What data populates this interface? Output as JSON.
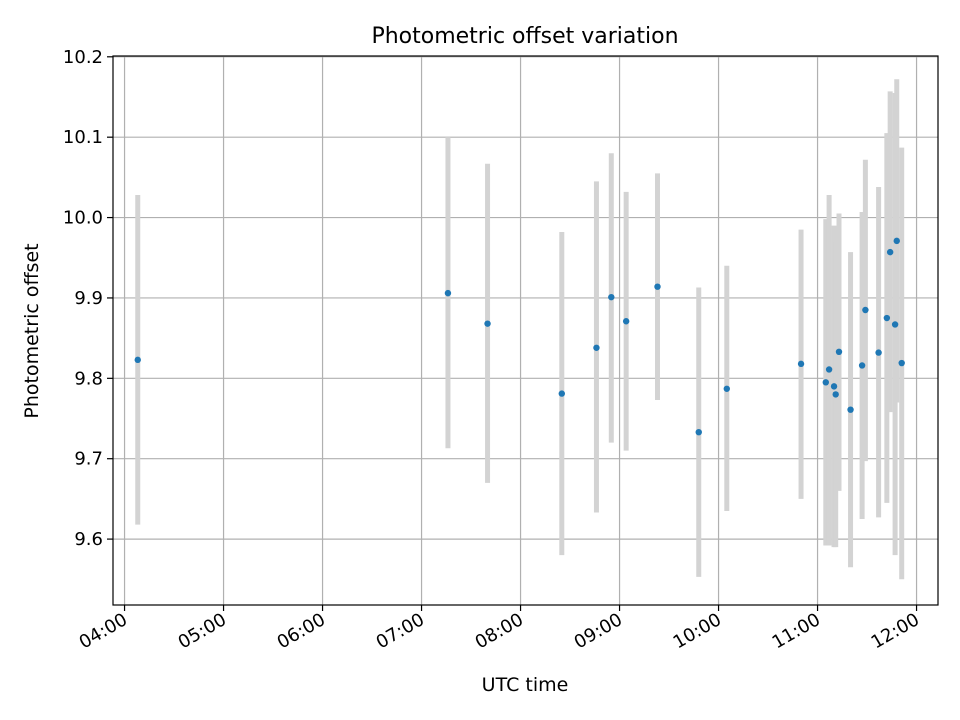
{
  "chart_data": {
    "type": "scatter",
    "title": "Photometric offset variation",
    "xlabel": "UTC time",
    "ylabel": "Photometric offset",
    "xlim": [
      "03:53",
      "12:13"
    ],
    "ylim": [
      9.518,
      10.201
    ],
    "x_ticks": [
      "04:00",
      "05:00",
      "06:00",
      "07:00",
      "08:00",
      "09:00",
      "10:00",
      "11:00",
      "12:00"
    ],
    "y_ticks": [
      "9.6",
      "9.7",
      "9.8",
      "9.9",
      "10.0",
      "10.1",
      "10.2"
    ],
    "grid": true,
    "legend": "none",
    "colors": {
      "points": "#1f77b4",
      "error_bars": "#d3d3d3",
      "grid": "#b0b0b0"
    },
    "series": [
      {
        "points": [
          {
            "x": "04:08",
            "y": 9.823,
            "err_low": 9.618,
            "err_high": 10.028
          },
          {
            "x": "07:16",
            "y": 9.906,
            "err_low": 9.713,
            "err_high": 10.1
          },
          {
            "x": "07:40",
            "y": 9.868,
            "err_low": 9.67,
            "err_high": 10.067
          },
          {
            "x": "08:25",
            "y": 9.781,
            "err_low": 9.58,
            "err_high": 9.982
          },
          {
            "x": "08:46",
            "y": 9.838,
            "err_low": 9.633,
            "err_high": 10.045
          },
          {
            "x": "08:55",
            "y": 9.901,
            "err_low": 9.72,
            "err_high": 10.08
          },
          {
            "x": "09:04",
            "y": 9.871,
            "err_low": 9.71,
            "err_high": 10.032
          },
          {
            "x": "09:23",
            "y": 9.914,
            "err_low": 9.773,
            "err_high": 10.055
          },
          {
            "x": "09:48",
            "y": 9.733,
            "err_low": 9.553,
            "err_high": 9.913
          },
          {
            "x": "10:05",
            "y": 9.787,
            "err_low": 9.635,
            "err_high": 9.94
          },
          {
            "x": "10:50",
            "y": 9.818,
            "err_low": 9.65,
            "err_high": 9.985
          },
          {
            "x": "11:05",
            "y": 9.795,
            "err_low": 9.592,
            "err_high": 9.998
          },
          {
            "x": "11:07",
            "y": 9.811,
            "err_low": 9.592,
            "err_high": 10.028
          },
          {
            "x": "11:10",
            "y": 9.79,
            "err_low": 9.59,
            "err_high": 9.99
          },
          {
            "x": "11:11",
            "y": 9.78,
            "err_low": 9.59,
            "err_high": 9.97
          },
          {
            "x": "11:13",
            "y": 9.833,
            "err_low": 9.66,
            "err_high": 10.005
          },
          {
            "x": "11:20",
            "y": 9.761,
            "err_low": 9.565,
            "err_high": 9.957
          },
          {
            "x": "11:27",
            "y": 9.816,
            "err_low": 9.625,
            "err_high": 10.007
          },
          {
            "x": "11:29",
            "y": 9.885,
            "err_low": 9.697,
            "err_high": 10.072
          },
          {
            "x": "11:37",
            "y": 9.832,
            "err_low": 9.627,
            "err_high": 10.038
          },
          {
            "x": "11:42",
            "y": 9.875,
            "err_low": 9.645,
            "err_high": 10.105
          },
          {
            "x": "11:44",
            "y": 9.957,
            "err_low": 9.758,
            "err_high": 10.157
          },
          {
            "x": "11:47",
            "y": 9.867,
            "err_low": 9.58,
            "err_high": 10.155
          },
          {
            "x": "11:48",
            "y": 9.971,
            "err_low": 9.77,
            "err_high": 10.172
          },
          {
            "x": "11:51",
            "y": 9.819,
            "err_low": 9.55,
            "err_high": 10.087
          }
        ]
      }
    ]
  }
}
